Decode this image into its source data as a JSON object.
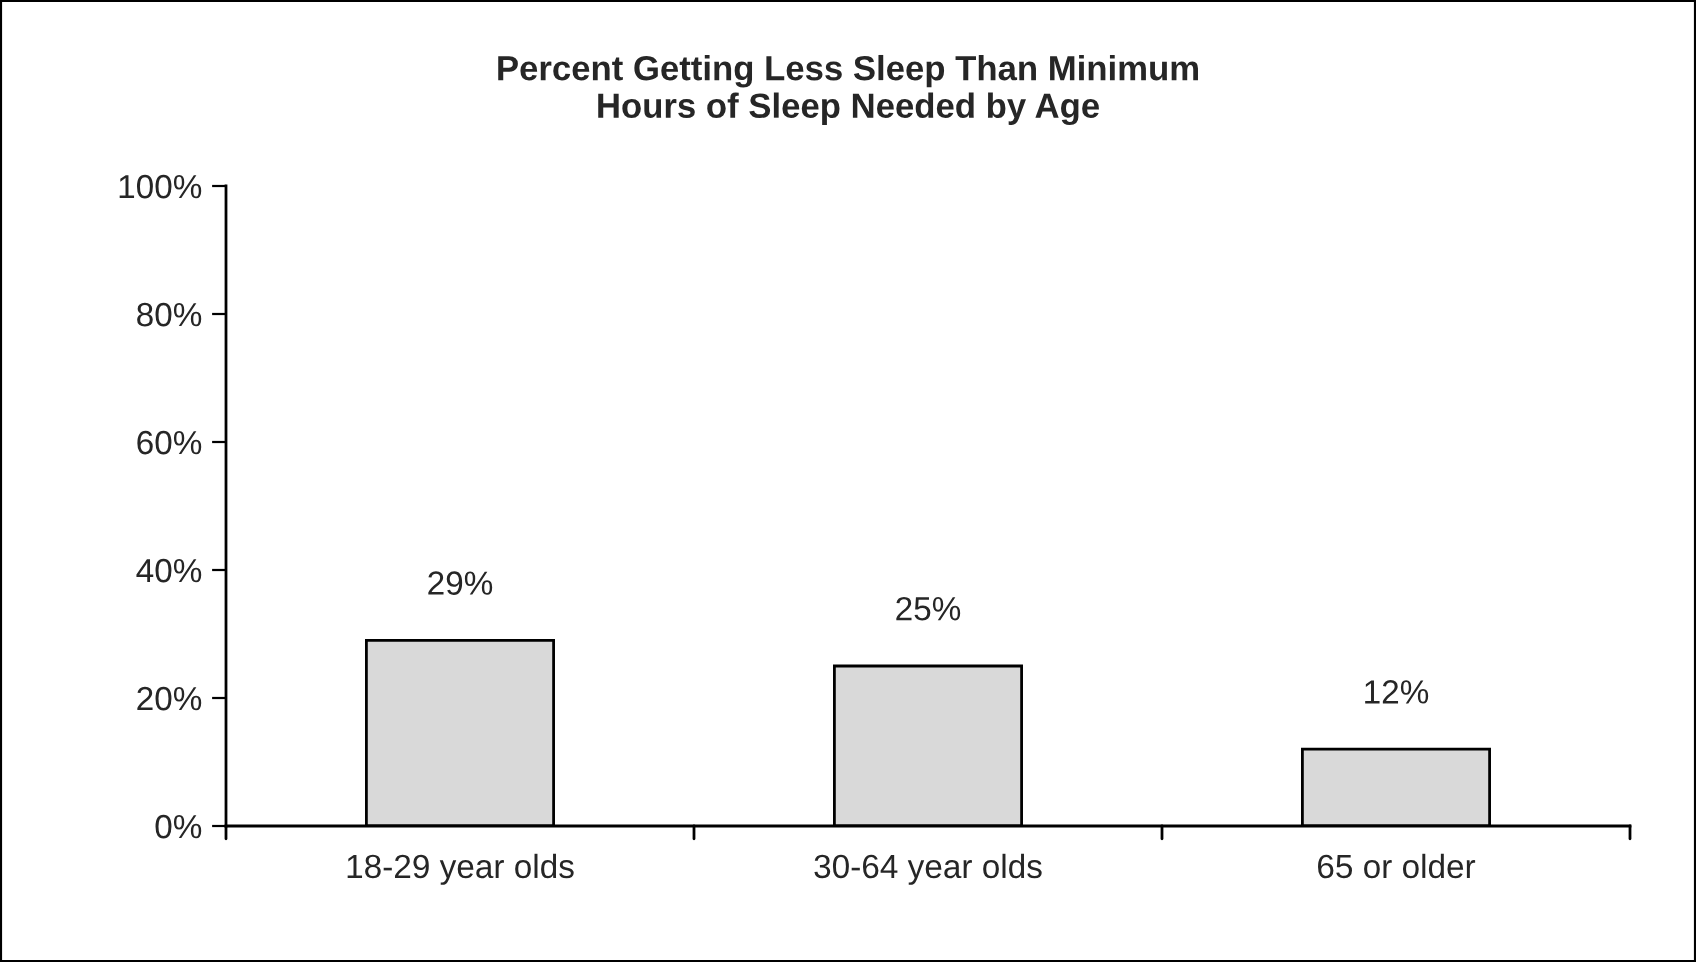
{
  "chart_data": {
    "type": "bar",
    "title": "Percent Getting Less Sleep Than Minimum\nHours of Sleep Needed by Age",
    "categories": [
      "18-29 year olds",
      "30-64 year olds",
      "65 or older"
    ],
    "values": [
      29,
      25,
      12
    ],
    "color": "#d9d9d9",
    "value_labels": [
      "29%",
      "25%",
      "12%"
    ],
    "ylim": [
      0,
      100
    ],
    "yticks": [
      {
        "value": 0,
        "label": "0%"
      },
      {
        "value": 20,
        "label": "20%"
      },
      {
        "value": 40,
        "label": "40%"
      },
      {
        "value": 60,
        "label": "60%"
      },
      {
        "value": 80,
        "label": "80%"
      },
      {
        "value": 100,
        "label": "100%"
      }
    ],
    "grid": false,
    "legend": false
  }
}
